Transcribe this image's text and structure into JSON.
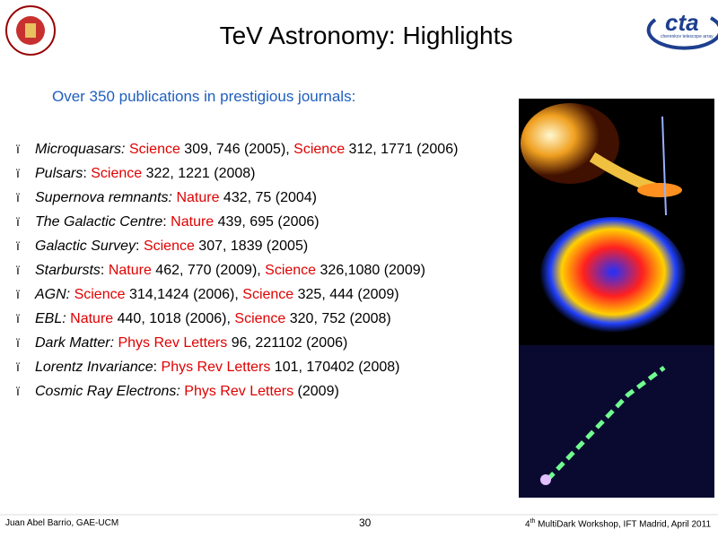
{
  "header": {
    "title": "TeV Astronomy: Highlights",
    "logo_text": "cta",
    "logo_subtext": "cherenkov telescope array"
  },
  "intro": "Over 350 publications in prestigious journals:",
  "bullet": "ï",
  "items": [
    [
      {
        "kind": "topic",
        "text": "Microquasars:"
      },
      {
        "kind": "ref",
        "text": " "
      },
      {
        "kind": "journal",
        "text": "Science"
      },
      {
        "kind": "ref",
        "text": " 309, 746 (2005), "
      },
      {
        "kind": "journal",
        "text": "Science"
      },
      {
        "kind": "ref",
        "text": " 312, 1771 (2006)"
      }
    ],
    [
      {
        "kind": "topic",
        "text": "Pulsars"
      },
      {
        "kind": "ref",
        "text": ": "
      },
      {
        "kind": "journal",
        "text": "Science"
      },
      {
        "kind": "ref",
        "text": " 322, 1221 (2008)"
      }
    ],
    [
      {
        "kind": "topic",
        "text": "Supernova remnants:"
      },
      {
        "kind": "ref",
        "text": " "
      },
      {
        "kind": "journal",
        "text": "Nature"
      },
      {
        "kind": "ref",
        "text": " 432, 75 (2004)"
      }
    ],
    [
      {
        "kind": "topic",
        "text": "The Galactic Centre"
      },
      {
        "kind": "ref",
        "text": ": "
      },
      {
        "kind": "journal",
        "text": "Nature"
      },
      {
        "kind": "ref",
        "text": " 439, 695 (2006)"
      }
    ],
    [
      {
        "kind": "topic",
        "text": "Galactic Survey"
      },
      {
        "kind": "ref",
        "text": ": "
      },
      {
        "kind": "journal",
        "text": "Science"
      },
      {
        "kind": "ref",
        "text": " 307, 1839 (2005)"
      }
    ],
    [
      {
        "kind": "topic",
        "text": "Starbursts"
      },
      {
        "kind": "ref",
        "text": ": "
      },
      {
        "kind": "journal",
        "text": "Nature"
      },
      {
        "kind": "ref",
        "text": " 462, 770 (2009), "
      },
      {
        "kind": "journal",
        "text": "Science"
      },
      {
        "kind": "ref",
        "text": " 326,1080 (2009)"
      }
    ],
    [
      {
        "kind": "topic",
        "text": "AGN:"
      },
      {
        "kind": "ref",
        "text": " "
      },
      {
        "kind": "journal",
        "text": "Science"
      },
      {
        "kind": "ref",
        "text": " 314,1424 (2006), "
      },
      {
        "kind": "journal",
        "text": "Science"
      },
      {
        "kind": "ref",
        "text": " 325, 444 (2009)"
      }
    ],
    [
      {
        "kind": "topic",
        "text": "EBL:"
      },
      {
        "kind": "ref",
        "text": " "
      },
      {
        "kind": "journal",
        "text": "Nature"
      },
      {
        "kind": "ref",
        "text": " 440, 1018 (2006), "
      },
      {
        "kind": "journal",
        "text": "Science"
      },
      {
        "kind": "ref",
        "text": " 320, 752 (2008)"
      }
    ],
    [
      {
        "kind": "topic",
        "text": "Dark Matter:"
      },
      {
        "kind": "ref",
        "text": " "
      },
      {
        "kind": "journal",
        "text": "Phys Rev Letters"
      },
      {
        "kind": "ref",
        "text": " 96, 221102 (2006)"
      }
    ],
    [
      {
        "kind": "topic",
        "text": "Lorentz Invariance"
      },
      {
        "kind": "ref",
        "text": ": "
      },
      {
        "kind": "journal",
        "text": "Phys Rev Letters"
      },
      {
        "kind": "ref",
        "text": " 101, 170402 (2008)"
      }
    ],
    [
      {
        "kind": "topic",
        "text": "Cosmic Ray Electrons:"
      },
      {
        "kind": "ref",
        "text": " "
      },
      {
        "kind": "journal",
        "text": "Phys Rev Letters"
      },
      {
        "kind": "ref",
        "text": " (2009)"
      }
    ]
  ],
  "footer": {
    "author": "Juan Abel Barrio, GAE-UCM",
    "page": "30",
    "event_number": "4",
    "event_suffix": "th",
    "event_rest": " MultiDark Workshop, IFT Madrid, April 2011"
  }
}
